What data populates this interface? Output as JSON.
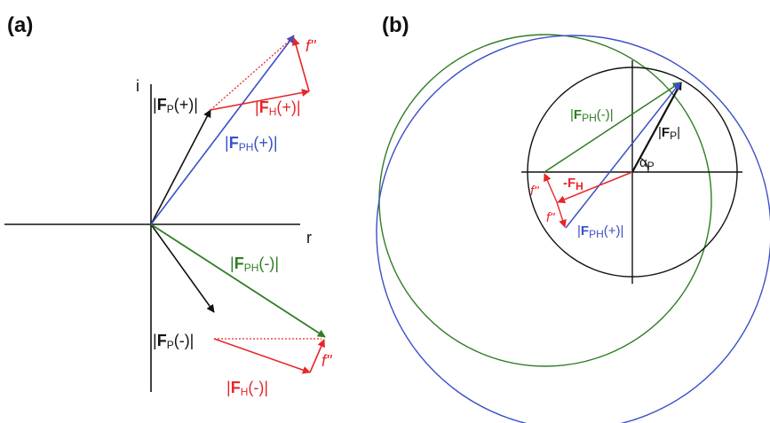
{
  "panel_a": {
    "label": "(a)",
    "axis_i": "i",
    "axis_r": "r",
    "fp_plus": {
      "pre": "|",
      "bold": "F",
      "sub": "P",
      "post": "(+)|"
    },
    "fh_plus": {
      "pre": "|",
      "bold": "F",
      "sub": "H",
      "post": "(+)|"
    },
    "fph_plus": {
      "pre": "|",
      "bold": "F",
      "sub": "PH",
      "post": "(+)|"
    },
    "fph_minus": {
      "pre": "|",
      "bold": "F",
      "sub": "PH",
      "post": "(-)|"
    },
    "fp_minus": {
      "pre": "|",
      "bold": "F",
      "sub": "P",
      "post": "(-)|"
    },
    "fh_minus": {
      "pre": "|",
      "bold": "F",
      "sub": "H",
      "post": "(-)|"
    },
    "fpp_top": "f\"",
    "fpp_bottom": "f\""
  },
  "panel_b": {
    "label": "(b)",
    "fph_minus": {
      "pre": "|",
      "bold": "F",
      "sub": "PH",
      "post": "(-)|"
    },
    "fp": {
      "pre": "|",
      "bold": "F",
      "sub": "P",
      "post": "|"
    },
    "alpha": {
      "main": "α",
      "sub": "P"
    },
    "neg_fh": {
      "main": "-F",
      "sub": "H"
    },
    "f1": "f\"",
    "f2": "f\"",
    "fph_plus": {
      "pre": "|",
      "bold": "F",
      "sub": "PH",
      "post": "(+)|"
    }
  },
  "colors": {
    "black": "#111111",
    "red": "#e8262a",
    "blue": "#3a4fc6",
    "green": "#2e7d23"
  }
}
